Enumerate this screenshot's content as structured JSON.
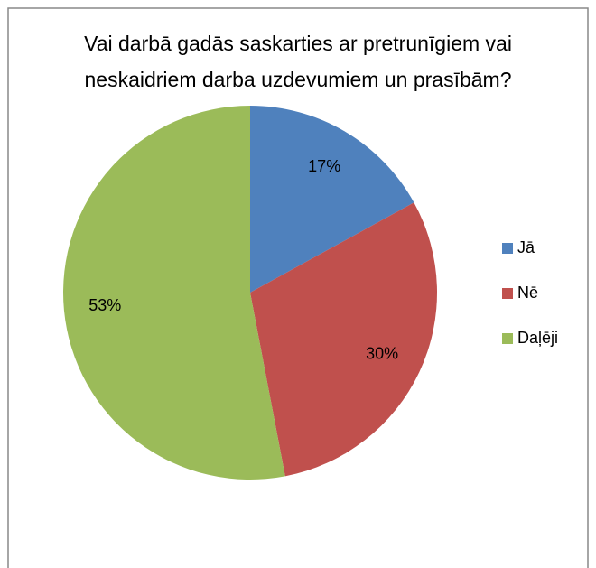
{
  "chart_data": {
    "type": "pie",
    "title": "Vai darbā gadās saskarties ar pretrunīgiem vai neskaidriem darba uzdevumiem un prasībām?",
    "categories": [
      "Jā",
      "Nē",
      "Daļēji"
    ],
    "values": [
      17,
      30,
      53
    ],
    "value_labels": [
      "17%",
      "30%",
      "53%"
    ],
    "colors": [
      "#4f81bd",
      "#c0504d",
      "#9bbb59"
    ],
    "legend": "right"
  }
}
